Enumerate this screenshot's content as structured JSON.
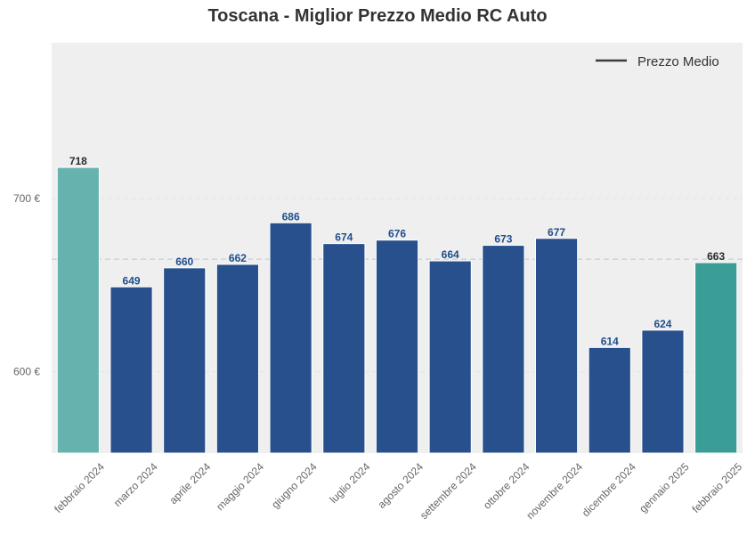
{
  "chart_data": {
    "type": "bar",
    "title": "Toscana - Miglior Prezzo Medio RC Auto",
    "xlabel": "",
    "ylabel": "",
    "categories": [
      "febbraio 2024",
      "marzo 2024",
      "aprile 2024",
      "maggio 2024",
      "giugno 2024",
      "luglio 2024",
      "agosto 2024",
      "settembre 2024",
      "ottobre 2024",
      "novembre 2024",
      "dicembre 2024",
      "gennaio 2025",
      "febbraio 2025"
    ],
    "values": [
      718,
      649,
      660,
      662,
      686,
      674,
      676,
      664,
      673,
      677,
      614,
      624,
      663
    ],
    "bar_colors": [
      "#66b2ae",
      "#27508c",
      "#27508c",
      "#27508c",
      "#27508c",
      "#27508c",
      "#27508c",
      "#27508c",
      "#27508c",
      "#27508c",
      "#27508c",
      "#27508c",
      "#3a9e96"
    ],
    "label_colors": [
      "#2b2b2b",
      "#1f4e8c",
      "#1f4e8c",
      "#1f4e8c",
      "#1f4e8c",
      "#1f4e8c",
      "#1f4e8c",
      "#1f4e8c",
      "#1f4e8c",
      "#1f4e8c",
      "#1f4e8c",
      "#1f4e8c",
      "#2b2b2b"
    ],
    "ylim": [
      553,
      790
    ],
    "yticks": [
      600,
      700
    ],
    "ytick_labels": [
      "600 €",
      "700 €"
    ],
    "average_line": 665,
    "legend": {
      "label": "Prezzo Medio",
      "position": "top-right"
    },
    "grid": true,
    "background": "#efefef"
  }
}
